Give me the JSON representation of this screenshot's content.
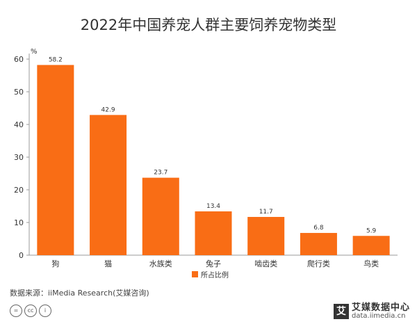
{
  "chart_data": {
    "type": "bar",
    "title": "2022年中国养宠人群主要饲养宠物类型",
    "ylabel": "%",
    "ylim": [
      0,
      60
    ],
    "yticks": [
      0,
      10,
      20,
      30,
      40,
      50,
      60
    ],
    "categories": [
      "狗",
      "猫",
      "水族类",
      "兔子",
      "啮齿类",
      "爬行类",
      "鸟类"
    ],
    "series": [
      {
        "name": "所占比例",
        "values": [
          58.2,
          42.9,
          23.7,
          13.4,
          11.7,
          6.8,
          5.9
        ],
        "color": "#f96d15"
      }
    ],
    "legend_position": "bottom-center",
    "grid": false
  },
  "footer": {
    "source": "数据来源：iiMedia Research(艾媒咨询)",
    "cc_icons": [
      "equals-icon",
      "cc-icon",
      "person-icon"
    ],
    "watermark_badge": "艾",
    "watermark_name": "艾媒数据中心",
    "watermark_url": "data.iimedia.cn"
  }
}
